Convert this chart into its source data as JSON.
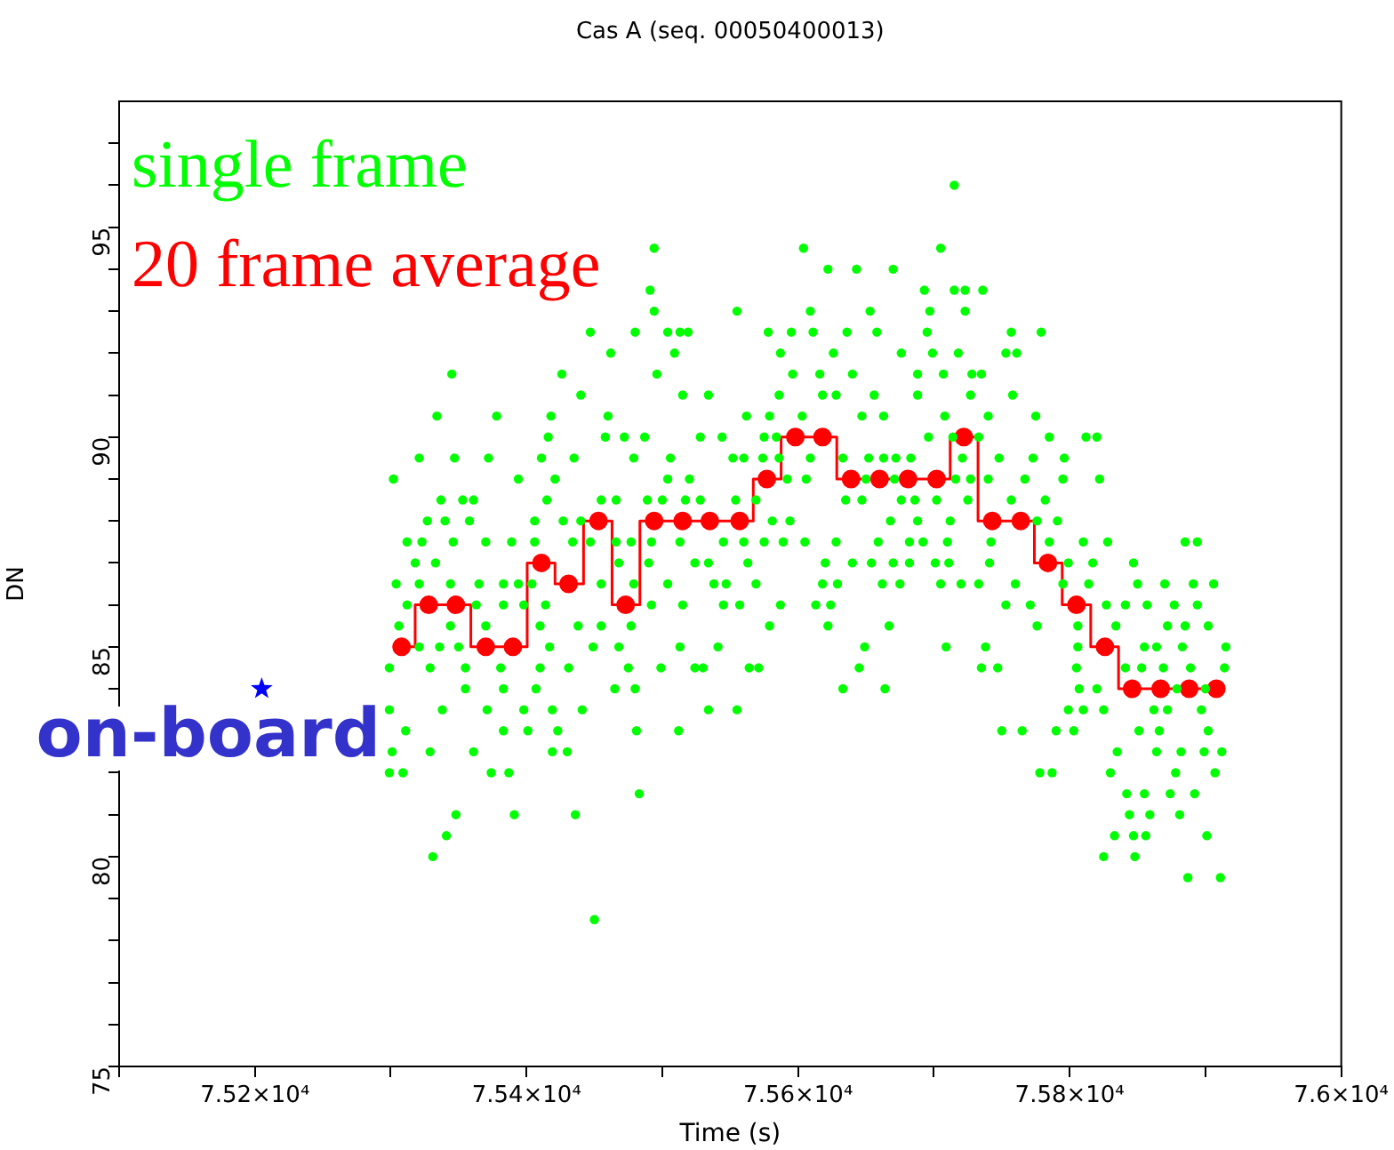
{
  "chart_data": {
    "type": "scatter",
    "title": "Cas A (seq. 00050400013)",
    "xlabel": "Time (s)",
    "ylabel": "DN",
    "legend": "top left",
    "marker": "circle",
    "grid": false,
    "xlim": [
      75100,
      76000
    ],
    "xticks": [
      {
        "value": 75100,
        "label": null
      },
      {
        "value": 75200,
        "label": "7.52×10⁴"
      },
      {
        "value": 75300,
        "label": null
      },
      {
        "value": 75400,
        "label": "7.54×10⁴"
      },
      {
        "value": 75500,
        "label": null
      },
      {
        "value": 75600,
        "label": "7.56×10⁴"
      },
      {
        "value": 75700,
        "label": null
      },
      {
        "value": 75800,
        "label": "7.58×10⁴"
      },
      {
        "value": 75900,
        "label": null
      },
      {
        "value": 76000,
        "label": "7.6×10⁴"
      }
    ],
    "ylim": [
      75,
      98
    ],
    "yticks": [
      75,
      {
        "value": 76,
        "label": null
      },
      {
        "value": 77,
        "label": null
      },
      {
        "value": 78,
        "label": null
      },
      {
        "value": 79,
        "label": null
      },
      80,
      {
        "value": 81,
        "label": null
      },
      {
        "value": 82,
        "label": null
      },
      {
        "value": 83,
        "label": null
      },
      {
        "value": 84,
        "label": null
      },
      85,
      {
        "value": 86,
        "label": null
      },
      {
        "value": 87,
        "label": null
      },
      {
        "value": 88,
        "label": null
      },
      {
        "value": 89,
        "label": null
      },
      90,
      {
        "value": 91,
        "label": null
      },
      {
        "value": 92,
        "label": null
      },
      {
        "value": 93,
        "label": null
      },
      {
        "value": 94,
        "label": null
      },
      95,
      {
        "value": 96,
        "label": null
      },
      {
        "value": 97,
        "label": null
      }
    ],
    "annotations": [
      {
        "text": "on-board",
        "x": 75205,
        "y": 84
      }
    ],
    "series": [
      {
        "name": "single frame",
        "color": "#00ff00",
        "x": [
          75715,
          75494,
          75604,
          75705,
          75622,
          75643,
          75670,
          75491,
          75693,
          75715,
          75723,
          75736,
          75494,
          75555,
          75609,
          75653,
          75697,
          75723,
          75447,
          75480,
          75504,
          75513,
          75519,
          75578,
          75595,
          75611,
          75636,
          75658,
          75695,
          75757,
          75779,
          75462,
          75509,
          75587,
          75626,
          75676,
          75699,
          75718,
          75753,
          75761,
          75345,
          75426,
          75496,
          75596,
          75616,
          75640,
          75688,
          75707,
          75728,
          75735,
          75440,
          75515,
          75534,
          75586,
          75618,
          75628,
          75656,
          75688,
          75727,
          75758,
          75334,
          75378,
          75418,
          75460,
          75562,
          75579,
          75603,
          75647,
          75663,
          75708,
          75740,
          75775,
          75416,
          75458,
          75472,
          75487,
          75528,
          75544,
          75575,
          75584,
          75696,
          75714,
          75733,
          75785,
          75812,
          75820,
          75321,
          75347,
          75372,
          75411,
          75435,
          75479,
          75506,
          75552,
          75560,
          75574,
          75586,
          75609,
          75633,
          75652,
          75663,
          75672,
          75683,
          75721,
          75748,
          75773,
          75796,
          75302,
          75394,
          75421,
          75504,
          75520,
          75592,
          75606,
          75650,
          75671,
          75716,
          75727,
          75740,
          75767,
          75795,
          75822,
          75337,
          75353,
          75361,
          75415,
          75455,
          75466,
          75489,
          75500,
          75517,
          75528,
          75554,
          75569,
          75635,
          75647,
          75676,
          75686,
          75702,
          75725,
          75757,
          75782,
          75327,
          75340,
          75358,
          75406,
          75427,
          75440,
          75581,
          75594,
          75668,
          75688,
          75712,
          75776,
          75791,
          75312,
          75323,
          75346,
          75370,
          75389,
          75406,
          75434,
          75447,
          75466,
          75477,
          75492,
          75513,
          75545,
          75560,
          75575,
          75589,
          75605,
          75628,
          75659,
          75682,
          75692,
          75710,
          75742,
          75785,
          75810,
          75828,
          75885,
          75894,
          75318,
          75333,
          75468,
          75490,
          75524,
          75534,
          75563,
          75620,
          75640,
          75654,
          75670,
          75682,
          75701,
          75711,
          75741,
          75799,
          75817,
          75847,
          75304,
          75321,
          75344,
          75365,
          75383,
          75394,
          75404,
          75455,
          75479,
          75504,
          75538,
          75547,
          75569,
          75618,
          75629,
          75662,
          75675,
          75705,
          75720,
          75733,
          75760,
          75795,
          75814,
          75850,
          75870,
          75891,
          75906,
          75312,
          75363,
          75383,
          75398,
          75414,
          75492,
          75515,
          75545,
          75557,
          75587,
          75613,
          75624,
          75753,
          75771,
          75827,
          75841,
          75857,
          75877,
          75894,
          75306,
          75344,
          75370,
          75410,
          75438,
          75455,
          75477,
          75579,
          75622,
          75667,
          75776,
          75806,
          75834,
          75872,
          75885,
          75902,
          75321,
          75336,
          75350,
          75417,
          75449,
          75468,
          75513,
          75541,
          75649,
          75709,
          75738,
          75806,
          75855,
          75864,
          75883,
          75915,
          75299,
          75329,
          75355,
          75381,
          75410,
          75431,
          75475,
          75499,
          75524,
          75530,
          75564,
          75571,
          75645,
          75735,
          75747,
          75805,
          75841,
          75853,
          75869,
          75889,
          75914,
          75355,
          75383,
          75407,
          75465,
          75480,
          75633,
          75664,
          75807,
          75820,
          75879,
          75900,
          75299,
          75338,
          75371,
          75398,
          75419,
          75441,
          75534,
          75555,
          75799,
          75810,
          75825,
          75862,
          75872,
          75897,
          75311,
          75383,
          75401,
          75423,
          75481,
          75512,
          75750,
          75765,
          75790,
          75803,
          75851,
          75866,
          75902,
          75301,
          75329,
          75361,
          75419,
          75430,
          75835,
          75864,
          75882,
          75899,
          75912,
          75299,
          75309,
          75374,
          75387,
          75778,
          75787,
          75830,
          75878,
          75907,
          75483,
          75842,
          75855,
          75874,
          75892,
          75348,
          75391,
          75436,
          75844,
          75859,
          75881,
          75341,
          75833,
          75847,
          75856,
          75901,
          75331,
          75825,
          75848,
          75887,
          75911,
          75450
        ],
        "values": [
          96,
          94.5,
          94.5,
          94.5,
          94,
          94,
          94,
          93.5,
          93.5,
          93.5,
          93.5,
          93.5,
          93,
          93,
          93,
          93,
          93,
          93,
          92.5,
          92.5,
          92.5,
          92.5,
          92.5,
          92.5,
          92.5,
          92.5,
          92.5,
          92.5,
          92.5,
          92.5,
          92.5,
          92,
          92,
          92,
          92,
          92,
          92,
          92,
          92,
          92,
          91.5,
          91.5,
          91.5,
          91.5,
          91.5,
          91.5,
          91.5,
          91.5,
          91.5,
          91.5,
          91,
          91,
          91,
          91,
          91,
          91,
          91,
          91,
          91,
          91,
          90.5,
          90.5,
          90.5,
          90.5,
          90.5,
          90.5,
          90.5,
          90.5,
          90.5,
          90.5,
          90.5,
          90.5,
          90,
          90,
          90,
          90,
          90,
          90,
          90,
          90,
          90,
          90,
          90,
          90,
          90,
          90,
          89.5,
          89.5,
          89.5,
          89.5,
          89.5,
          89.5,
          89.5,
          89.5,
          89.5,
          89.5,
          89.5,
          89.5,
          89.5,
          89.5,
          89.5,
          89.5,
          89.5,
          89.5,
          89.5,
          89.5,
          89.5,
          89,
          89,
          89,
          89,
          89,
          89,
          89,
          89,
          89,
          89,
          89,
          89,
          89,
          89,
          89,
          88.5,
          88.5,
          88.5,
          88.5,
          88.5,
          88.5,
          88.5,
          88.5,
          88.5,
          88.5,
          88.5,
          88.5,
          88.5,
          88.5,
          88.5,
          88.5,
          88.5,
          88.5,
          88.5,
          88.5,
          88,
          88,
          88,
          88,
          88,
          88,
          88,
          88,
          88,
          88,
          88,
          88,
          88,
          87.5,
          87.5,
          87.5,
          87.5,
          87.5,
          87.5,
          87.5,
          87.5,
          87.5,
          87.5,
          87.5,
          87.5,
          87.5,
          87.5,
          87.5,
          87.5,
          87.5,
          87.5,
          87.5,
          87.5,
          87.5,
          87.5,
          87.5,
          87.5,
          87.5,
          87.5,
          87.5,
          87.5,
          87,
          87,
          87,
          87,
          87,
          87,
          87,
          87,
          87,
          87,
          87,
          87,
          87,
          87,
          87,
          87,
          87,
          87,
          86.5,
          86.5,
          86.5,
          86.5,
          86.5,
          86.5,
          86.5,
          86.5,
          86.5,
          86.5,
          86.5,
          86.5,
          86.5,
          86.5,
          86.5,
          86.5,
          86.5,
          86.5,
          86.5,
          86.5,
          86.5,
          86.5,
          86.5,
          86.5,
          86.5,
          86.5,
          86.5,
          86,
          86,
          86,
          86,
          86,
          86,
          86,
          86,
          86,
          86,
          86,
          86,
          86,
          86,
          86,
          86,
          86,
          86,
          86,
          85.5,
          85.5,
          85.5,
          85.5,
          85.5,
          85.5,
          85.5,
          85.5,
          85.5,
          85.5,
          85.5,
          85.5,
          85.5,
          85.5,
          85.5,
          85.5,
          85,
          85,
          85,
          85,
          85,
          85,
          85,
          85,
          85,
          85,
          85,
          85,
          85,
          85,
          85,
          85,
          84.5,
          84.5,
          84.5,
          84.5,
          84.5,
          84.5,
          84.5,
          84.5,
          84.5,
          84.5,
          84.5,
          84.5,
          84.5,
          84.5,
          84.5,
          84.5,
          84.5,
          84.5,
          84.5,
          84.5,
          84.5,
          84,
          84,
          84,
          84,
          84,
          84,
          84,
          84,
          84,
          84,
          84,
          83.5,
          83.5,
          83.5,
          83.5,
          83.5,
          83.5,
          83.5,
          83.5,
          83.5,
          83.5,
          83.5,
          83.5,
          83.5,
          83.5,
          83,
          83,
          83,
          83,
          83,
          83,
          83,
          83,
          83,
          83,
          83,
          83,
          83,
          82.5,
          82.5,
          82.5,
          82.5,
          82.5,
          82.5,
          82.5,
          82.5,
          82.5,
          82.5,
          82,
          82,
          82,
          82,
          82,
          82,
          82,
          82,
          82,
          81.5,
          81.5,
          81.5,
          81.5,
          81.5,
          81,
          81,
          81,
          81,
          81,
          81,
          80.5,
          80.5,
          80.5,
          80.5,
          80.5,
          80,
          80,
          80,
          79.5,
          79.5,
          78.5
        ]
      },
      {
        "name": "20 frame average",
        "type": "step",
        "color": "#ff0000",
        "marker": "circle",
        "x": [
          75308,
          75328,
          75348,
          75370,
          75390,
          75411,
          75431,
          75453,
          75473,
          75494,
          75515,
          75535,
          75557,
          75577,
          75598,
          75618,
          75639,
          75660,
          75681,
          75702,
          75722,
          75743,
          75764,
          75784,
          75805,
          75826,
          75846,
          75867,
          75888,
          75908
        ],
        "values": [
          85,
          86,
          86,
          85,
          85,
          87,
          86.5,
          88,
          86,
          88,
          88,
          88,
          88,
          89,
          90,
          90,
          89,
          89,
          89,
          89,
          90,
          88,
          88,
          87,
          86,
          85,
          84,
          84,
          84,
          84
        ]
      },
      {
        "color": "#0000ff",
        "marker": "star",
        "x": [
          75205
        ],
        "values": [
          84
        ]
      }
    ]
  }
}
